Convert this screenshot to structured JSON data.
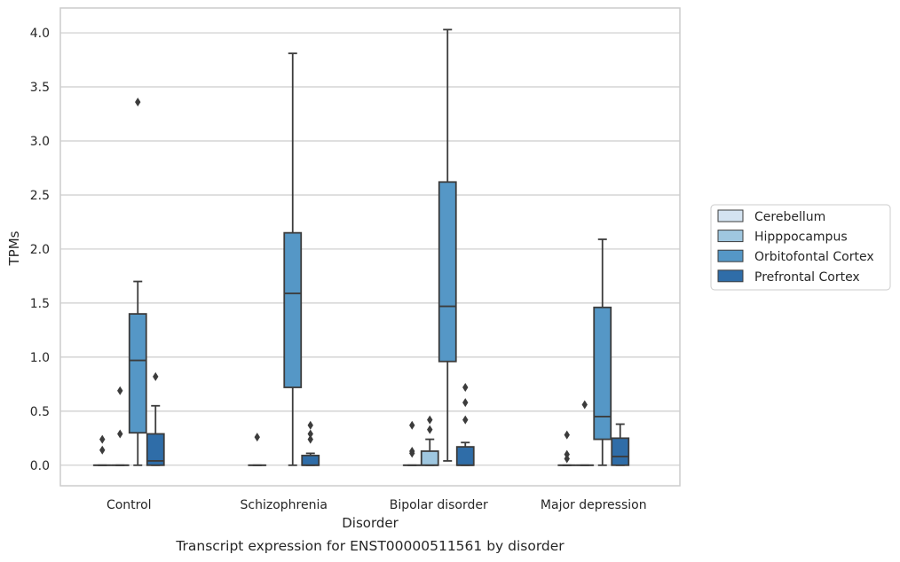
{
  "chart_data": {
    "type": "box",
    "xlabel": "Disorder",
    "ylabel": "TPMs",
    "caption": "Transcript expression for ENST00000511561 by disorder",
    "ylim": [
      -0.19,
      4.23
    ],
    "yticks": [
      "0.0",
      "0.5",
      "1.0",
      "1.5",
      "2.0",
      "2.5",
      "3.0",
      "3.5",
      "4.0"
    ],
    "grid": true,
    "legend_position": "right",
    "categories": [
      "Control",
      "Schizophrenia",
      "Bipolar disorder",
      "Major depression"
    ],
    "series": [
      {
        "name": "Cerebellum",
        "color": "#d4e3f1",
        "boxes": [
          {
            "q1": 0.0,
            "median": 0.0,
            "q3": 0.0,
            "whislo": 0.0,
            "whishi": 0.0,
            "fliers": [
              0.14,
              0.24
            ]
          },
          {
            "q1": 0.0,
            "median": 0.0,
            "q3": 0.0,
            "whislo": 0.0,
            "whishi": 0.0,
            "fliers": [
              0.26
            ]
          },
          {
            "q1": 0.0,
            "median": 0.0,
            "q3": 0.0,
            "whislo": 0.0,
            "whishi": 0.0,
            "fliers": [
              0.11,
              0.13,
              0.37
            ]
          },
          {
            "q1": 0.0,
            "median": 0.0,
            "q3": 0.0,
            "whislo": 0.0,
            "whishi": 0.0,
            "fliers": [
              0.06,
              0.1,
              0.28
            ]
          }
        ]
      },
      {
        "name": "Hipppocampus",
        "color": "#9fc7e0",
        "boxes": [
          {
            "q1": 0.0,
            "median": 0.0,
            "q3": 0.0,
            "whislo": 0.0,
            "whishi": 0.0,
            "fliers": [
              0.29,
              0.69
            ]
          },
          null,
          {
            "q1": 0.0,
            "median": 0.0,
            "q3": 0.13,
            "whislo": 0.0,
            "whishi": 0.24,
            "fliers": [
              0.33,
              0.42
            ]
          },
          {
            "q1": 0.0,
            "median": 0.0,
            "q3": 0.0,
            "whislo": 0.0,
            "whishi": 0.0,
            "fliers": [
              0.56
            ]
          }
        ]
      },
      {
        "name": "Orbitofontal Cortex",
        "color": "#5597c6",
        "boxes": [
          {
            "q1": 0.3,
            "median": 0.97,
            "q3": 1.4,
            "whislo": 0.0,
            "whishi": 1.7,
            "fliers": [
              3.36
            ]
          },
          {
            "q1": 0.72,
            "median": 1.59,
            "q3": 2.15,
            "whislo": 0.0,
            "whishi": 3.81,
            "fliers": []
          },
          {
            "q1": 0.96,
            "median": 1.47,
            "q3": 2.62,
            "whislo": 0.04,
            "whishi": 4.03,
            "fliers": []
          },
          {
            "q1": 0.24,
            "median": 0.45,
            "q3": 1.46,
            "whislo": 0.0,
            "whishi": 2.09,
            "fliers": []
          }
        ]
      },
      {
        "name": "Prefrontal Cortex",
        "color": "#2f6da8",
        "boxes": [
          {
            "q1": 0.0,
            "median": 0.04,
            "q3": 0.29,
            "whislo": 0.0,
            "whishi": 0.55,
            "fliers": [
              0.82
            ]
          },
          {
            "q1": 0.0,
            "median": 0.0,
            "q3": 0.09,
            "whislo": 0.0,
            "whishi": 0.11,
            "fliers": [
              0.24,
              0.29,
              0.37
            ]
          },
          {
            "q1": 0.0,
            "median": 0.0,
            "q3": 0.17,
            "whislo": 0.0,
            "whishi": 0.21,
            "fliers": [
              0.42,
              0.58,
              0.72
            ]
          },
          {
            "q1": 0.0,
            "median": 0.08,
            "q3": 0.25,
            "whislo": 0.0,
            "whishi": 0.38,
            "fliers": []
          }
        ]
      }
    ]
  }
}
